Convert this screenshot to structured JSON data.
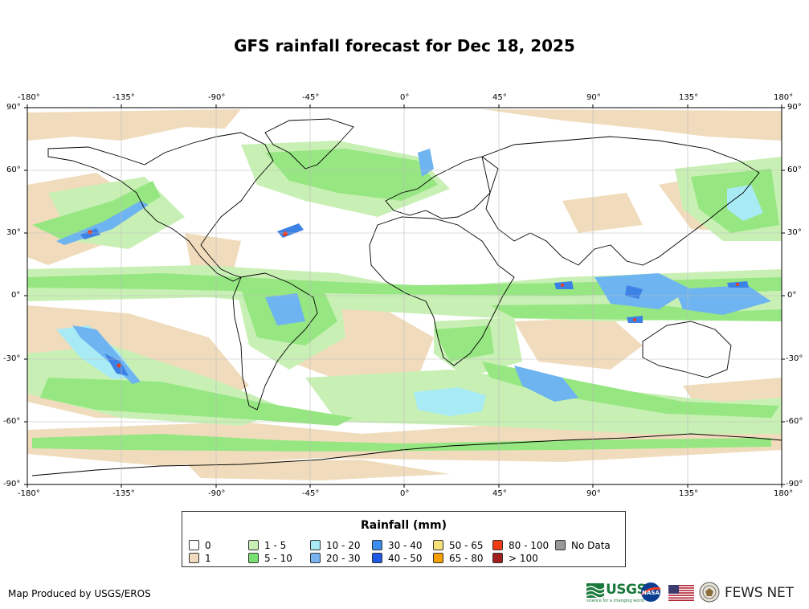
{
  "title": "GFS rainfall forecast for Dec 18, 2025",
  "map": {
    "lon_labels": [
      "-180°",
      "-135°",
      "-90°",
      "-45°",
      "0°",
      "45°",
      "90°",
      "135°",
      "180°"
    ],
    "lat_labels": [
      "90°",
      "60°",
      "30°",
      "0°",
      "-30°",
      "-60°",
      "-90°"
    ],
    "colors": {
      "ocean_dry": "#ffffff",
      "rain_1": "#f0dcbc",
      "rain_1_5": "#c8f0b4",
      "rain_5_10": "#96e682",
      "rain_10_20": "#a8ebf5",
      "rain_20_30": "#6eb4f0",
      "rain_30_40": "#3c82e6",
      "rain_40_50": "#1e50c8",
      "rain_80_100": "#e63c1e",
      "land_border": "#000000",
      "grid": "#c8c8c8"
    }
  },
  "legend": {
    "title": "Rainfall (mm)",
    "items": [
      {
        "label": "0",
        "color": "#ffffff"
      },
      {
        "label": "1",
        "color": "#f0dcbc"
      },
      {
        "label": "1 - 5",
        "color": "#c8f0b4"
      },
      {
        "label": "5 - 10",
        "color": "#78e070"
      },
      {
        "label": "10 - 20",
        "color": "#a8ebf5"
      },
      {
        "label": "20 - 30",
        "color": "#78b4f0"
      },
      {
        "label": "30 - 40",
        "color": "#3c8cf0"
      },
      {
        "label": "40 - 50",
        "color": "#1e5ae6"
      },
      {
        "label": "50 - 65",
        "color": "#f5e178"
      },
      {
        "label": "65 - 80",
        "color": "#f5a000"
      },
      {
        "label": "80 - 100",
        "color": "#f03c14"
      },
      {
        "label": "> 100",
        "color": "#a01e1e"
      },
      {
        "label": "No Data",
        "color": "#999999"
      }
    ]
  },
  "footer": {
    "credit": "Map Produced by USGS/EROS",
    "usgs_logo_text": "USGS",
    "usgs_tagline": "science for a changing world",
    "nasa_logo_text": "NASA",
    "fewsnet_logo_text": "FEWS NET"
  }
}
